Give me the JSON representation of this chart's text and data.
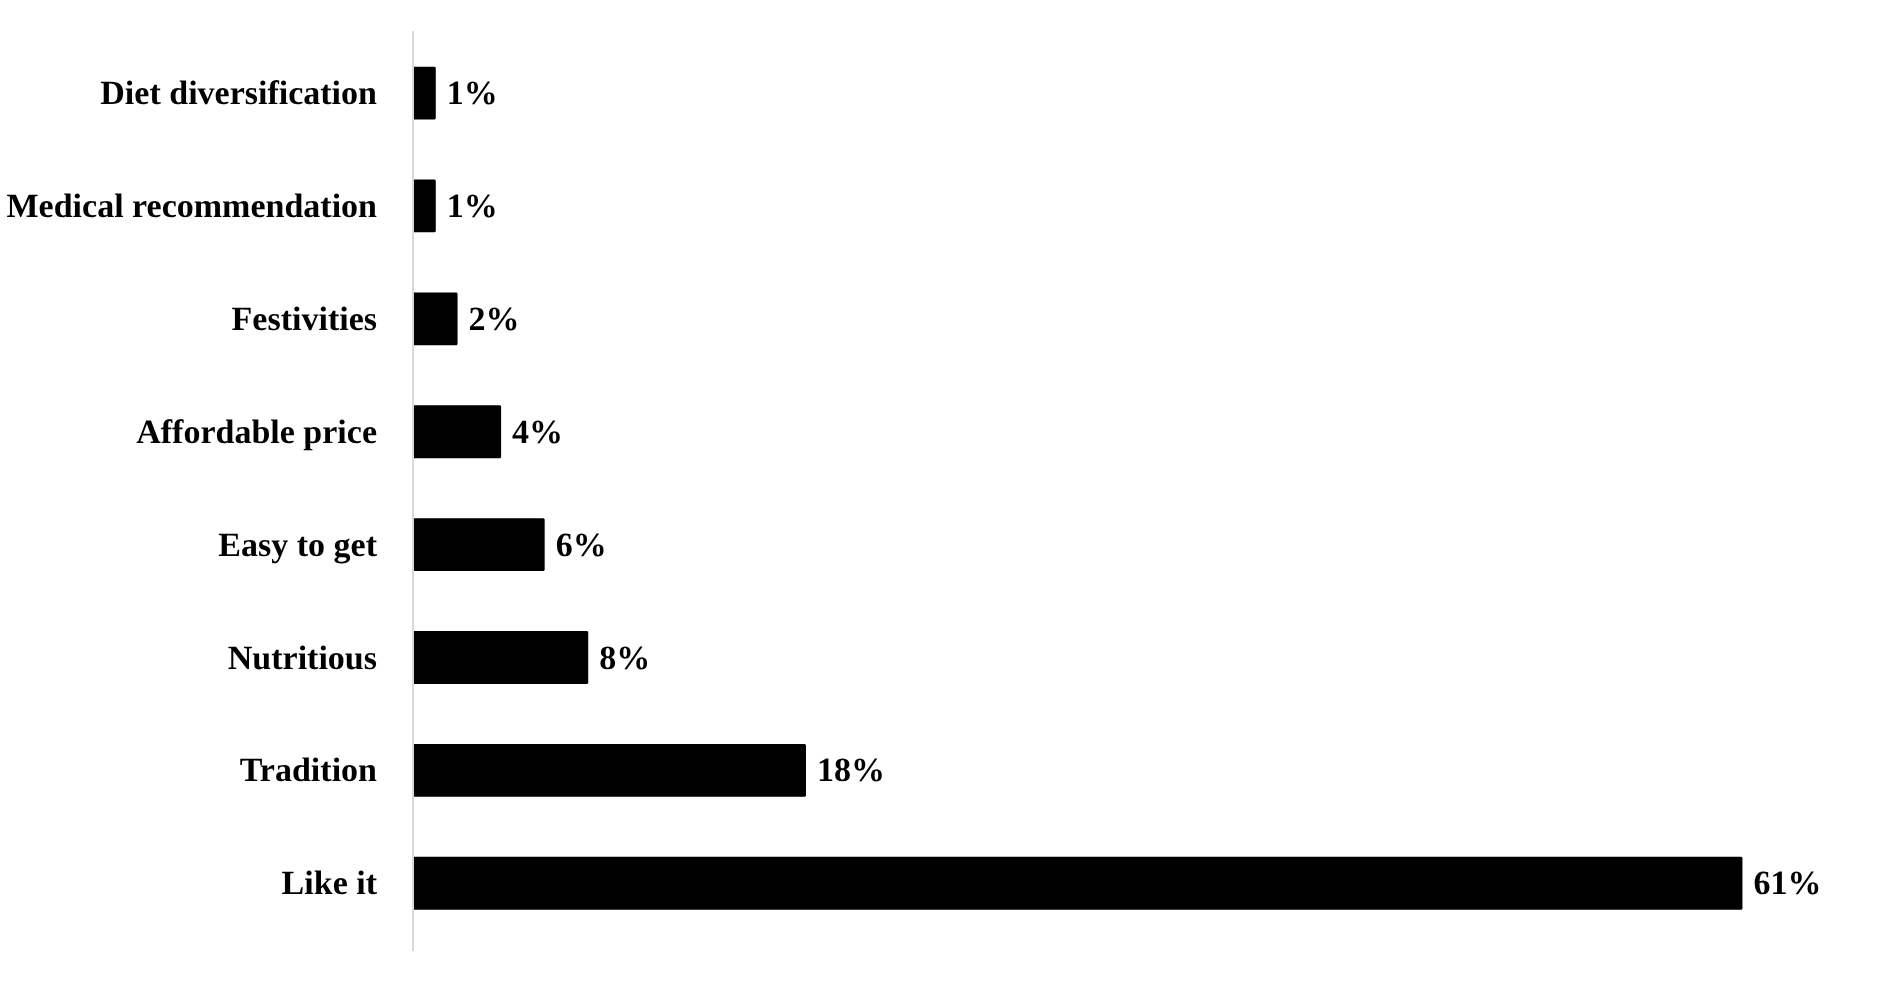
{
  "chart_data": {
    "type": "bar",
    "orientation": "horizontal",
    "categories": [
      "Diet diversification",
      "Medical recommendation",
      "Festivities",
      "Affordable price",
      "Easy to get",
      "Nutritious",
      "Tradition",
      "Like it"
    ],
    "values": [
      1,
      1,
      2,
      4,
      6,
      8,
      18,
      61
    ],
    "value_labels": [
      "1%",
      "1%",
      "2%",
      "4%",
      "6%",
      "8%",
      "18%",
      "61%"
    ],
    "color": "#000000",
    "grid": false
  }
}
